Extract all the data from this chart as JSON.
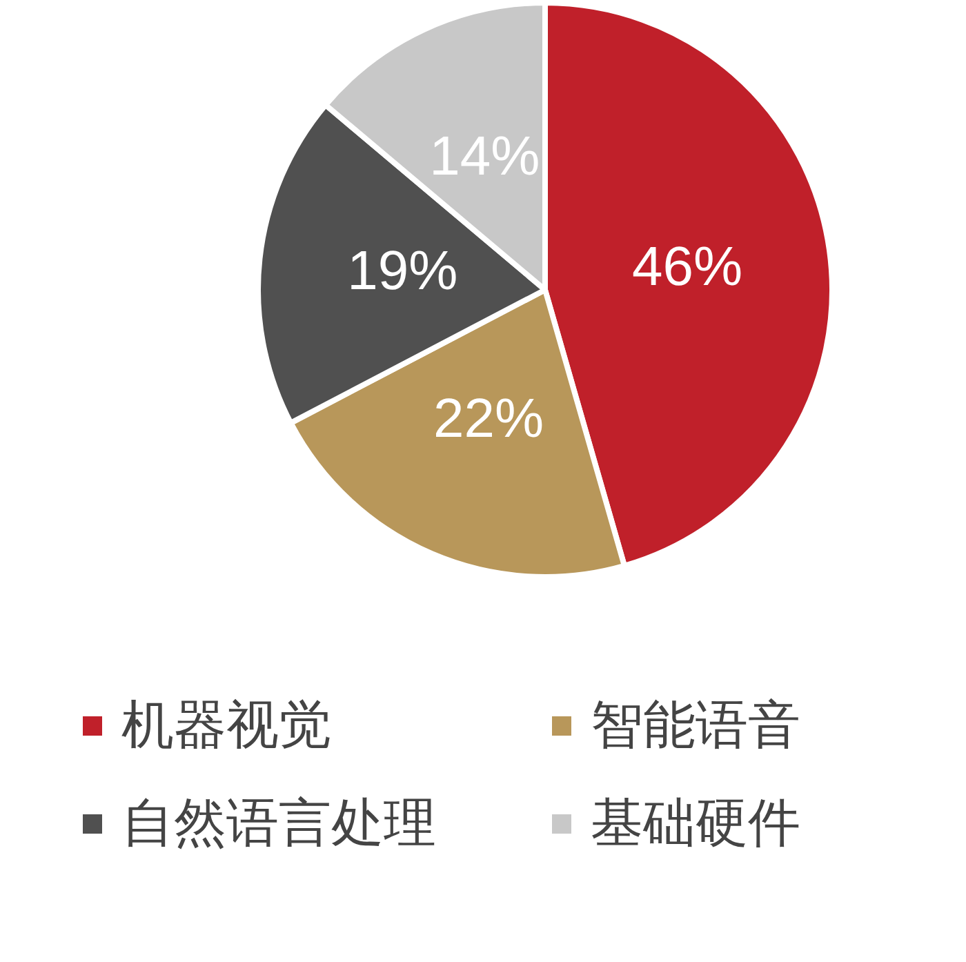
{
  "chart_data": {
    "type": "pie",
    "categories": [
      "机器视觉",
      "智能语音",
      "自然语言处理",
      "基础硬件"
    ],
    "values": [
      46,
      22,
      19,
      14
    ],
    "colors": [
      "#c0202a",
      "#b8975a",
      "#505050",
      "#c8c8c8"
    ],
    "value_labels": [
      "46%",
      "22%",
      "19%",
      "14%"
    ],
    "legend": "bottom"
  }
}
